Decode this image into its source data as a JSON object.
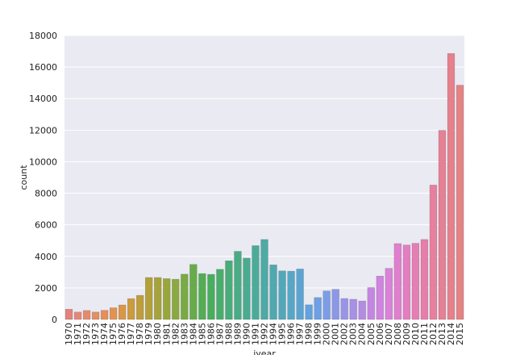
{
  "chart_data": {
    "type": "bar",
    "title": "",
    "xlabel": "iyear",
    "ylabel": "count",
    "ylim": [
      0,
      18000
    ],
    "yticks": [
      0,
      2000,
      4000,
      6000,
      8000,
      10000,
      12000,
      14000,
      16000,
      18000
    ],
    "grid": true,
    "categories": [
      "1970",
      "1971",
      "1972",
      "1973",
      "1974",
      "1975",
      "1976",
      "1977",
      "1978",
      "1979",
      "1980",
      "1981",
      "1982",
      "1983",
      "1984",
      "1985",
      "1986",
      "1987",
      "1988",
      "1989",
      "1990",
      "1991",
      "1992",
      "1994",
      "1995",
      "1996",
      "1997",
      "1998",
      "1999",
      "2000",
      "2001",
      "2002",
      "2003",
      "2004",
      "2005",
      "2006",
      "2007",
      "2008",
      "2009",
      "2010",
      "2011",
      "2012",
      "2013",
      "2014",
      "2015"
    ],
    "values": [
      650,
      470,
      570,
      470,
      580,
      740,
      920,
      1320,
      1530,
      2660,
      2660,
      2590,
      2550,
      2870,
      3490,
      2910,
      2860,
      3180,
      3720,
      4320,
      3890,
      4680,
      5070,
      3460,
      3080,
      3060,
      3200,
      930,
      1390,
      1810,
      1910,
      1330,
      1280,
      1170,
      2020,
      2750,
      3240,
      4810,
      4720,
      4830,
      5070,
      8520,
      11990,
      16860,
      14850
    ],
    "colors": [
      "#E2827B",
      "#E58777",
      "#E48B6D",
      "#E38E63",
      "#E39059",
      "#E1934F",
      "#D99746",
      "#CC9B3C",
      "#BF9D3A",
      "#B3A039",
      "#A6A33A",
      "#99A63C",
      "#8BA93F",
      "#7AAA43",
      "#67AC49",
      "#53AD52",
      "#49AD5E",
      "#49AD6C",
      "#49AC79",
      "#49AC84",
      "#4AAB8F",
      "#4BAB99",
      "#4DAAA4",
      "#4FA9AF",
      "#52A8B9",
      "#56A7C5",
      "#5BA4D2",
      "#62A2DE",
      "#6DA0E4",
      "#7C9CE6",
      "#8B98E6",
      "#9A94E6",
      "#A890E4",
      "#B68BE3",
      "#C487E1",
      "#D083DF",
      "#DA81D8",
      "#E07FCD",
      "#E47EC0",
      "#E57EB3",
      "#E67FA8",
      "#E6809E",
      "#E58095",
      "#E5818C",
      "#E58284"
    ]
  }
}
